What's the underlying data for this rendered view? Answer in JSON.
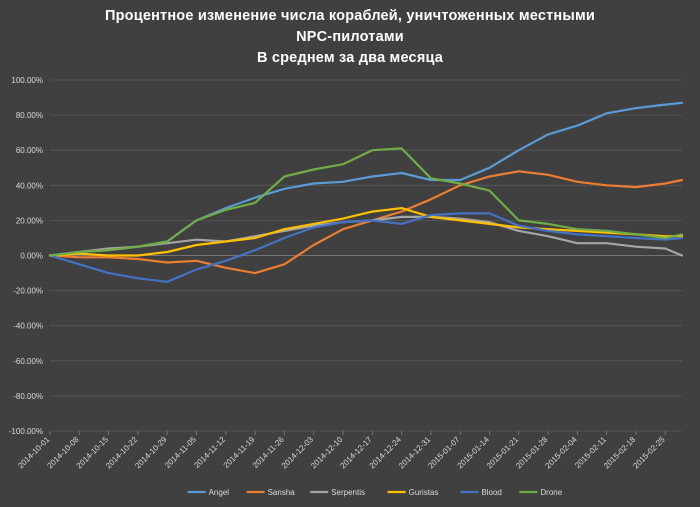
{
  "chart_data": {
    "type": "line",
    "title_lines": [
      "Процентное изменение числа кораблей, уничтоженных местными",
      "NPC-пилотами",
      "В среднем за два месяца"
    ],
    "xlabel": "",
    "ylabel": "",
    "ylim": [
      -100,
      100
    ],
    "y_ticks": [
      100,
      80,
      60,
      40,
      20,
      0,
      -20,
      -40,
      -60,
      -80,
      -100
    ],
    "y_tick_labels": [
      "100.00%",
      "80.00%",
      "60.00%",
      "40.00%",
      "20.00%",
      "0.00%",
      "-20.00%",
      "-40.00%",
      "-60.00%",
      "-80.00%",
      "-100.00%"
    ],
    "x_tick_labels": [
      "2014-10-01",
      "2014-10-08",
      "2014-10-15",
      "2014-10-22",
      "2014-10-29",
      "2014-11-05",
      "2014-11-12",
      "2014-11-19",
      "2014-11-26",
      "2014-12-03",
      "2014-12-10",
      "2014-12-17",
      "2014-12-24",
      "2014-12-31",
      "2015-01-07",
      "2015-01-14",
      "2015-01-21",
      "2015-01-28",
      "2015-02-04",
      "2015-02-11",
      "2015-02-18",
      "2015-02-25"
    ],
    "grid": true,
    "legend_position": "bottom",
    "x": [
      "2014-10-01",
      "2014-10-08",
      "2014-10-15",
      "2014-10-22",
      "2014-10-29",
      "2014-11-05",
      "2014-11-12",
      "2014-11-19",
      "2014-11-26",
      "2014-12-03",
      "2014-12-10",
      "2014-12-17",
      "2014-12-24",
      "2014-12-31",
      "2015-01-07",
      "2015-01-14",
      "2015-01-21",
      "2015-01-28",
      "2015-02-04",
      "2015-02-11",
      "2015-02-18",
      "2015-02-25",
      "2015-03-01"
    ],
    "series": [
      {
        "name": "Angel",
        "color": "#5b9bd5",
        "values": [
          0,
          2,
          3,
          5,
          8,
          20,
          27,
          33,
          38,
          41,
          42,
          45,
          47,
          43,
          43,
          50,
          60,
          69,
          74,
          81,
          84,
          86,
          87
        ]
      },
      {
        "name": "Sansha",
        "color": "#ed7d31",
        "values": [
          0,
          -1,
          -1,
          -2,
          -4,
          -3,
          -7,
          -10,
          -5,
          6,
          15,
          20,
          25,
          32,
          40,
          45,
          48,
          46,
          42,
          40,
          39,
          41,
          43
        ]
      },
      {
        "name": "Serpentis",
        "color": "#a5a5a5",
        "values": [
          0,
          2,
          4,
          5,
          7,
          9,
          8,
          11,
          14,
          17,
          19,
          20,
          22,
          22,
          21,
          19,
          14,
          11,
          7,
          7,
          5,
          4,
          0
        ]
      },
      {
        "name": "Guristas",
        "color": "#ffc000",
        "values": [
          0,
          1,
          0,
          0,
          2,
          6,
          8,
          10,
          15,
          18,
          21,
          25,
          27,
          22,
          20,
          18,
          16,
          15,
          14,
          13,
          12,
          11,
          11
        ]
      },
      {
        "name": "Blood",
        "color": "#4472c4",
        "values": [
          0,
          -5,
          -10,
          -13,
          -15,
          -8,
          -3,
          3,
          10,
          16,
          19,
          20,
          18,
          23,
          24,
          24,
          17,
          14,
          12,
          11,
          10,
          9,
          10
        ]
      },
      {
        "name": "Drone",
        "color": "#70ad47",
        "values": [
          0,
          2,
          3,
          5,
          8,
          20,
          26,
          30,
          45,
          49,
          52,
          60,
          61,
          44,
          41,
          37,
          20,
          18,
          15,
          14,
          12,
          10,
          12
        ]
      }
    ]
  }
}
